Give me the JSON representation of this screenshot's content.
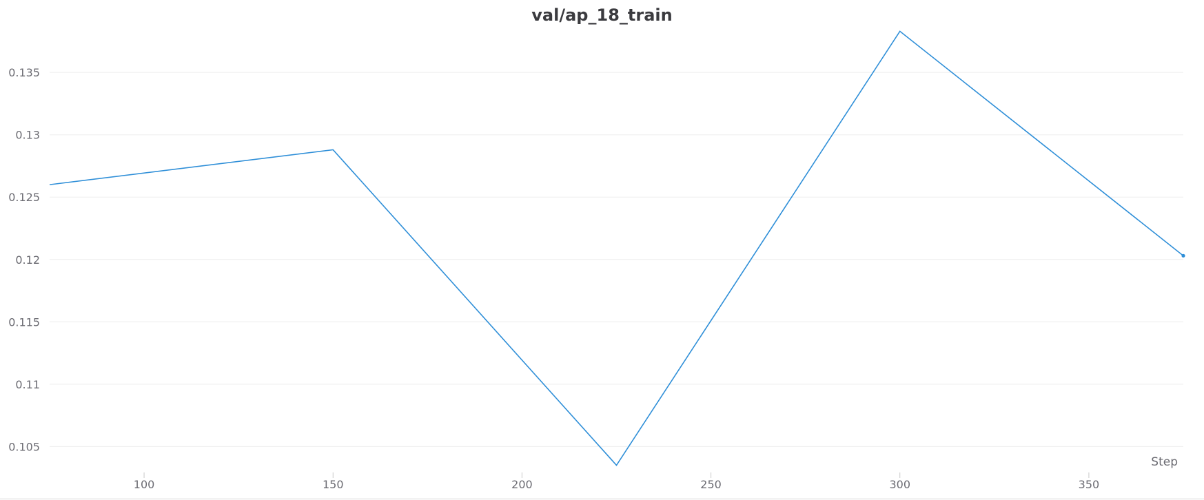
{
  "chart_data": {
    "type": "line",
    "title": "val/ap_18_train",
    "xlabel": "Step",
    "ylabel": "",
    "xlim": [
      75,
      375
    ],
    "ylim": [
      0.1027,
      0.1386
    ],
    "x_ticks": [
      100,
      150,
      200,
      250,
      300,
      350
    ],
    "y_ticks": [
      0.105,
      0.11,
      0.115,
      0.12,
      0.125,
      0.13,
      0.135
    ],
    "grid": true,
    "legend": "none",
    "series": [
      {
        "x": [
          75,
          150,
          225,
          300,
          375
        ],
        "values": [
          0.126,
          0.1288,
          0.1035,
          0.1383,
          0.1203
        ],
        "color": "#2f8fd8"
      }
    ],
    "colors": {
      "line": "#2f8fd8",
      "grid": "#ededed",
      "tick_text": "#6b6b72",
      "title_text": "#3b3b3f",
      "bottom_border": "#d6d6d6"
    }
  }
}
